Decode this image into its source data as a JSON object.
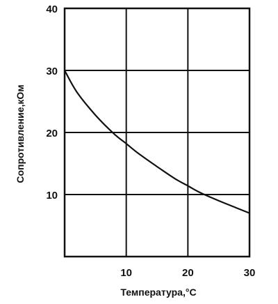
{
  "chart_data": {
    "type": "line",
    "title": "",
    "xlabel": "Температура,°C",
    "ylabel": "Сопротивление,кОм",
    "xlim": [
      0,
      30
    ],
    "ylim": [
      0,
      40
    ],
    "xticks": [
      10,
      20,
      30
    ],
    "yticks": [
      10,
      20,
      30,
      40
    ],
    "grid": true,
    "series": [
      {
        "x": [
          0,
          2,
          5,
          8,
          10,
          12,
          15,
          18,
          20,
          22,
          25,
          28,
          30
        ],
        "values": [
          30,
          26.5,
          22.8,
          19.8,
          18.2,
          16.6,
          14.5,
          12.5,
          11.4,
          10.3,
          9.0,
          7.8,
          7.0
        ]
      }
    ]
  }
}
